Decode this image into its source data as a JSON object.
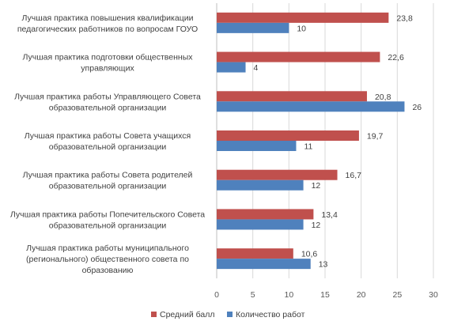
{
  "chart_data": {
    "type": "bar",
    "orientation": "horizontal",
    "categories": [
      [
        "Лучшая практика повышения квалификации",
        "педагогических работников по вопросам  ГОУО"
      ],
      [
        "Лучшая практика подготовки общественных",
        "управляющих"
      ],
      [
        "Лучшая практика работы Управляющего Совета",
        "образовательной организации"
      ],
      [
        "Лучшая практика работы Совета учащихся",
        "образовательной организации"
      ],
      [
        "Лучшая практика работы Совета родителей",
        "образовательной организации"
      ],
      [
        "Лучшая практика работы Попечительского Совета",
        "образовательной организации"
      ],
      [
        "Лучшая практика работы муниципального",
        "(регионального) общественного  совета по",
        "образованию"
      ]
    ],
    "series": [
      {
        "name": "Средний балл",
        "color": "#c0504d",
        "values": [
          23.8,
          22.6,
          20.8,
          19.7,
          16.7,
          13.4,
          10.6
        ],
        "labels": [
          "23,8",
          "22,6",
          "20,8",
          "19,7",
          "16,7",
          "13,4",
          "10,6"
        ]
      },
      {
        "name": "Количество работ",
        "color": "#4f81bd",
        "values": [
          10,
          4,
          26,
          11,
          12,
          12,
          13
        ],
        "labels": [
          "10",
          "4",
          "26",
          "11",
          "12",
          "12",
          "13"
        ]
      }
    ],
    "xlim": [
      0,
      30
    ],
    "xticks": [
      0,
      5,
      10,
      15,
      20,
      25,
      30
    ],
    "grid": true,
    "legend_position": "bottom",
    "title": "",
    "xlabel": "",
    "ylabel": ""
  }
}
